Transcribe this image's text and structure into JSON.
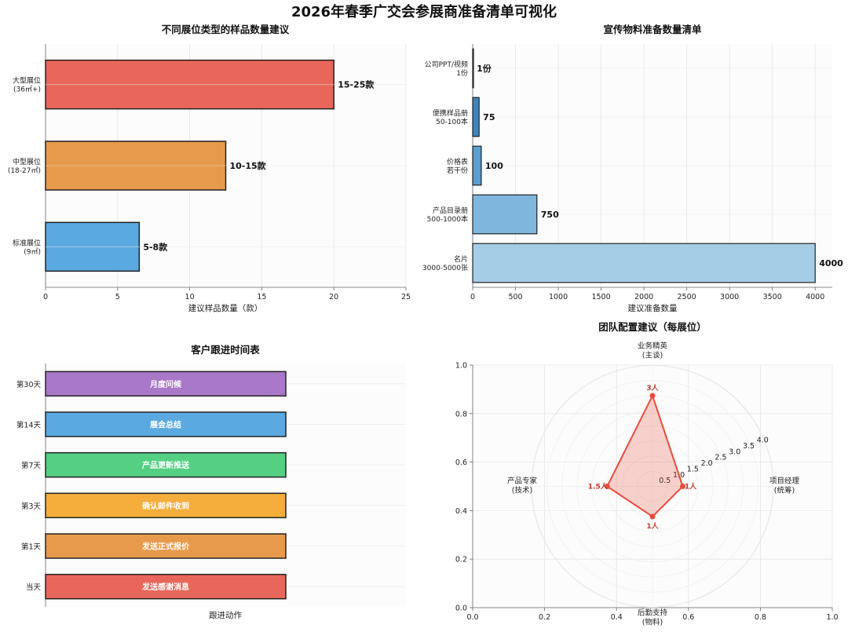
{
  "suptitle": "2026年春季广交会参展商准备清单可视化",
  "chart_data": [
    {
      "type": "bar",
      "orientation": "horizontal",
      "title": "不同展位类型的样品数量建议",
      "xlabel": "建议样品数量（款）",
      "ylabel": "",
      "xlim": [
        0,
        25
      ],
      "xticks": [
        0,
        5,
        10,
        15,
        20,
        25
      ],
      "categories": [
        [
          "大型展位",
          "(36㎡+)"
        ],
        [
          "中型展位",
          "(18-27㎡)"
        ],
        [
          "标准展位",
          "(9㎡)"
        ]
      ],
      "values": [
        20,
        12.5,
        6.5
      ],
      "value_labels": [
        "15-25款",
        "10-15款",
        "5-8款"
      ],
      "colors": [
        "#e8675a",
        "#e89a4c",
        "#5aa9e0"
      ]
    },
    {
      "type": "bar",
      "orientation": "horizontal",
      "title": "宣传物料准备数量清单",
      "xlabel": "建议准备数量",
      "ylabel": "",
      "xlim": [
        0,
        4200
      ],
      "xticks": [
        0,
        500,
        1000,
        1500,
        2000,
        2500,
        3000,
        3500,
        4000
      ],
      "categories": [
        [
          "公司PPT/视频",
          "1份"
        ],
        [
          "便携样品册",
          "50-100本"
        ],
        [
          "价格表",
          "若干份"
        ],
        [
          "产品目录册",
          "500-1000本"
        ],
        [
          "名片",
          "3000-5000张"
        ]
      ],
      "values": [
        1,
        75,
        100,
        750,
        4000
      ],
      "value_labels": [
        "1份",
        "75",
        "100",
        "750",
        "4000"
      ],
      "colors": [
        "#d6e6f4",
        "#3f85c0",
        "#5b9fd0",
        "#7fb6dd",
        "#a6cde6"
      ]
    },
    {
      "type": "bar",
      "orientation": "horizontal",
      "title": "客户跟进时间表",
      "xlabel": "跟进动作",
      "ylabel": "",
      "categories": [
        "第30天",
        "第14天",
        "第7天",
        "第3天",
        "第1天",
        "当天"
      ],
      "values": [
        1,
        1,
        1,
        1,
        1,
        1
      ],
      "bar_labels": [
        "月度问候",
        "展会总结",
        "产品更新推送",
        "确认邮件收到",
        "发送正式报价",
        "发送感谢消息"
      ],
      "colors": [
        "#a978c8",
        "#5aa9e0",
        "#55d082",
        "#f5ad3c",
        "#e89a4c",
        "#e8675a"
      ]
    },
    {
      "type": "radar",
      "title": "团队配置建议（每展位）",
      "axes": [
        [
          "业务精英",
          "(主谈)"
        ],
        [
          "项目经理",
          "(统筹)"
        ],
        [
          "后勤支持",
          "(物料)"
        ],
        [
          "产品专家",
          "(技术)"
        ]
      ],
      "values": [
        3,
        1,
        1,
        1.5
      ],
      "value_labels": [
        "3人",
        "1人",
        "1人",
        "1.5人"
      ],
      "rmax": 4.0,
      "rticks": [
        0.5,
        1.0,
        1.5,
        2.0,
        2.5,
        3.0,
        3.5,
        4.0
      ],
      "frame_ticks": [
        0.0,
        0.2,
        0.4,
        0.6,
        0.8,
        1.0
      ],
      "color": "#e74c3c"
    }
  ]
}
